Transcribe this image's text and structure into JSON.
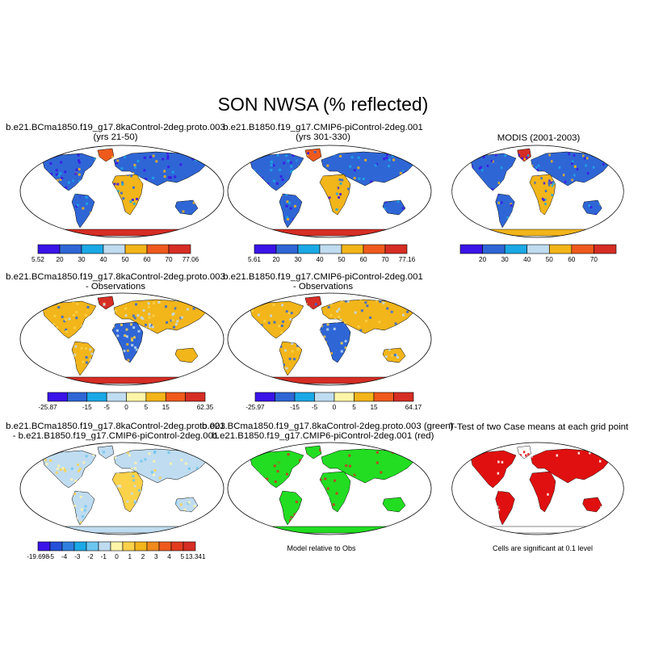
{
  "figure": {
    "title": "SON NWSA (% reflected)"
  },
  "panels": [
    {
      "key": "p1",
      "title1": "b.e21.BCma1850.f19_g17.8kaControl-2deg.proto.003",
      "title2": "(yrs 21-50)",
      "land": "abs"
    },
    {
      "key": "p2",
      "title1": "b.e21.B1850.f19_g17.CMIP6-piControl-2deg.001",
      "title2": "(yrs 301-330)",
      "land": "abs"
    },
    {
      "key": "p3",
      "title1": "MODIS (2001-2003)",
      "title2": "",
      "land": "obs"
    },
    {
      "key": "p4",
      "title1": "b.e21.BCma1850.f19_g17.8kaControl-2deg.proto.003",
      "title2": "- Observations",
      "land": "diffobs"
    },
    {
      "key": "p5",
      "title1": "b.e21.B1850.f19_g17.CMIP6-piControl-2deg.001",
      "title2": "- Observations",
      "land": "diffobs"
    },
    {
      "key": "p7",
      "title1": "b.e21.BCma1850.f19_g17.8kaControl-2deg.proto.003",
      "title2": "- b.e21.B1850.f19_g17.CMIP6-piControl-2deg.001",
      "land": "diffcase"
    },
    {
      "key": "p8",
      "title1": "b.e21.BCma1850.f19_g17.8kaControl-2deg.proto.003 (green)",
      "title2": "b.e21.B1850.f19_g17.CMIP6-piControl-2deg.001 (red)",
      "note": "Model relative to Obs",
      "land": "greenred"
    },
    {
      "key": "p9",
      "title1": "T-Test of two Case means at each grid point",
      "title2": "",
      "note": "Cells are significant at 0.1 level",
      "land": "ttest"
    }
  ],
  "colorbars": [
    {
      "key": "cb1",
      "labels": [
        "5.52",
        "20",
        "30",
        "40",
        "50",
        "60",
        "70",
        "77.06"
      ],
      "colors": [
        "#3a14e8",
        "#2f66d6",
        "#1aa9e6",
        "#bfdcf0",
        "#f2b51a",
        "#ef5a1c",
        "#d62d24"
      ]
    },
    {
      "key": "cb2",
      "labels": [
        "5.61",
        "20",
        "30",
        "40",
        "50",
        "60",
        "70",
        "77.16"
      ],
      "colors": [
        "#3a14e8",
        "#2f66d6",
        "#1aa9e6",
        "#bfdcf0",
        "#f2b51a",
        "#ef5a1c",
        "#d62d24"
      ]
    },
    {
      "key": "cb3",
      "labels": [
        "",
        "20",
        "30",
        "40",
        "50",
        "60",
        "70",
        ""
      ],
      "colors": [
        "#3a14e8",
        "#2f66d6",
        "#1aa9e6",
        "#bfdcf0",
        "#f2b51a",
        "#ef5a1c",
        "#d62d24"
      ]
    },
    {
      "key": "cb4",
      "labels": [
        "-25.87",
        "-15",
        "-5",
        "0",
        "5",
        "15",
        "62.35"
      ],
      "colors": [
        "#3a14e8",
        "#2f66d6",
        "#1aa9e6",
        "#bfdcf0",
        "#fff5a8",
        "#f2b51a",
        "#ef5a1c",
        "#d62d24"
      ]
    },
    {
      "key": "cb5",
      "labels": [
        "-25.97",
        "-15",
        "-5",
        "0",
        "5",
        "15",
        "64.17"
      ],
      "colors": [
        "#3a14e8",
        "#2f66d6",
        "#1aa9e6",
        "#bfdcf0",
        "#fff5a8",
        "#f2b51a",
        "#ef5a1c",
        "#d62d24"
      ]
    },
    {
      "key": "cb7",
      "labels": [
        "-19.698",
        "-5",
        "-4",
        "-3",
        "-2",
        "-1",
        "0",
        "1",
        "2",
        "3",
        "4",
        "5",
        "13.341"
      ],
      "colors": [
        "#3a14e8",
        "#2550d8",
        "#2f7fe0",
        "#1aa9e6",
        "#6cc6ef",
        "#bfdcf0",
        "#fff5a8",
        "#fcd24a",
        "#f2b51a",
        "#f08a1c",
        "#ef5a1c",
        "#e33b20",
        "#d62d24"
      ]
    }
  ],
  "chart_data": [
    {
      "type": "heatmap",
      "title": "b.e21.BCma1850.f19_g17.8kaControl-2deg.proto.003 (yrs 21-50)",
      "colorbar_labels": [
        "5.52",
        "20",
        "30",
        "40",
        "50",
        "60",
        "70",
        "77.06"
      ],
      "range": [
        5.52,
        77.06
      ]
    },
    {
      "type": "heatmap",
      "title": "b.e21.B1850.f19_g17.CMIP6-piControl-2deg.001 (yrs 301-330)",
      "colorbar_labels": [
        "5.61",
        "20",
        "30",
        "40",
        "50",
        "60",
        "70",
        "77.16"
      ],
      "range": [
        5.61,
        77.16
      ]
    },
    {
      "type": "heatmap",
      "title": "MODIS (2001-2003)",
      "colorbar_labels": [
        "20",
        "30",
        "40",
        "50",
        "60",
        "70"
      ]
    },
    {
      "type": "heatmap",
      "title": "b.e21.BCma1850.f19_g17.8kaControl-2deg.proto.003 - Observations",
      "colorbar_labels": [
        "-25.87",
        "-15",
        "-5",
        "0",
        "5",
        "15",
        "62.35"
      ],
      "range": [
        -25.87,
        62.35
      ]
    },
    {
      "type": "heatmap",
      "title": "b.e21.B1850.f19_g17.CMIP6-piControl-2deg.001 - Observations",
      "colorbar_labels": [
        "-25.97",
        "-15",
        "-5",
        "0",
        "5",
        "15",
        "64.17"
      ],
      "range": [
        -25.97,
        64.17
      ]
    },
    {
      "type": "heatmap",
      "title": "b.e21.BCma1850.f19_g17.8kaControl-2deg.proto.003 - b.e21.B1850.f19_g17.CMIP6-piControl-2deg.001",
      "colorbar_labels": [
        "-19.698",
        "-5",
        "-4",
        "-3",
        "-2",
        "-1",
        "0",
        "1",
        "2",
        "3",
        "4",
        "5",
        "13.341"
      ],
      "range": [
        -19.698,
        13.341
      ]
    },
    {
      "type": "heatmap",
      "title": "b.e21.BCma1850.f19_g17.8kaControl-2deg.proto.003 (green) b.e21.B1850.f19_g17.CMIP6-piControl-2deg.001 (red)",
      "annotation": "Model relative to Obs"
    },
    {
      "type": "heatmap",
      "title": "T-Test of two Case means at each grid point",
      "annotation": "Cells are significant at 0.1 level"
    }
  ]
}
